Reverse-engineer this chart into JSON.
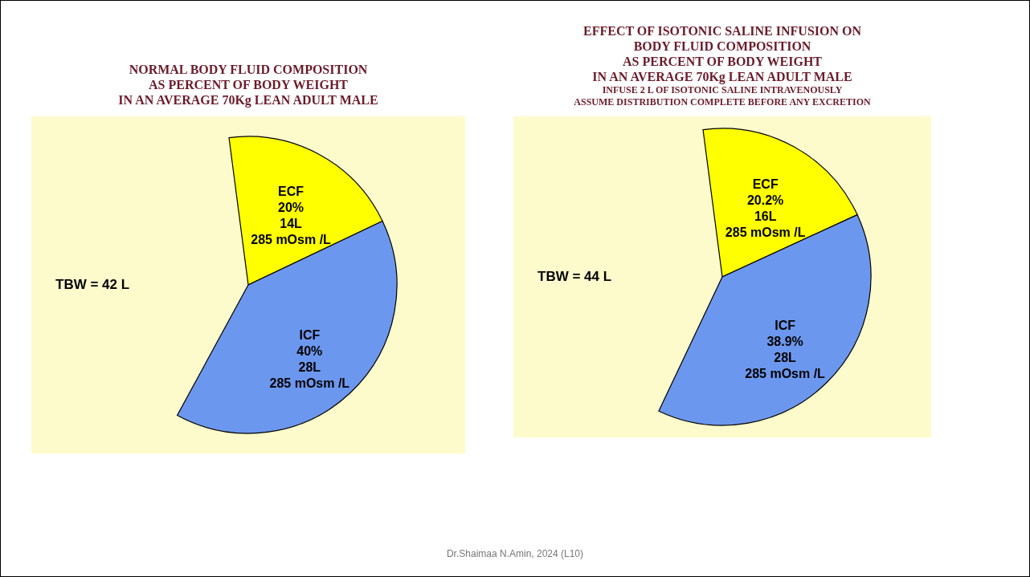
{
  "chart_data": [
    {
      "type": "pie",
      "title": "NORMAL BODY FLUID COMPOSITION\nAS PERCENT OF BODY WEIGHT\nIN AN AVERAGE 70Kg LEAN ADULT MALE",
      "categories": [
        "ECF",
        "ICF"
      ],
      "values": [
        20,
        40
      ],
      "colors": [
        "#ffff00",
        "#6c97ee"
      ],
      "value_labels": [
        "20%\n14L\n285 mOsm /L",
        "40%\n28L\n285 mOsm /L"
      ],
      "annotations": [
        "TBW = 42 L"
      ]
    },
    {
      "type": "pie",
      "title": "EFFECT OF ISOTONIC SALINE INFUSION ON\nBODY FLUID COMPOSITION\nAS PERCENT OF BODY WEIGHT\nIN AN AVERAGE 70Kg LEAN ADULT MALE",
      "subtitle": "INFUSE 2 L OF ISOTONIC SALINE INTRAVENOUSLY\nASSUME DISTRIBUTION COMPLETE BEFORE ANY EXCRETION",
      "categories": [
        "ECF",
        "ICF"
      ],
      "values": [
        20.2,
        38.9
      ],
      "colors": [
        "#ffff00",
        "#6c97ee"
      ],
      "value_labels": [
        "20.2%\n16L\n285 mOsm /L",
        "38.9%\n28L\n285 mOsm /L"
      ],
      "annotations": [
        "TBW = 44 L",
        "Dr.Shaimaa N.Amin, 2024 (L10)"
      ]
    }
  ]
}
